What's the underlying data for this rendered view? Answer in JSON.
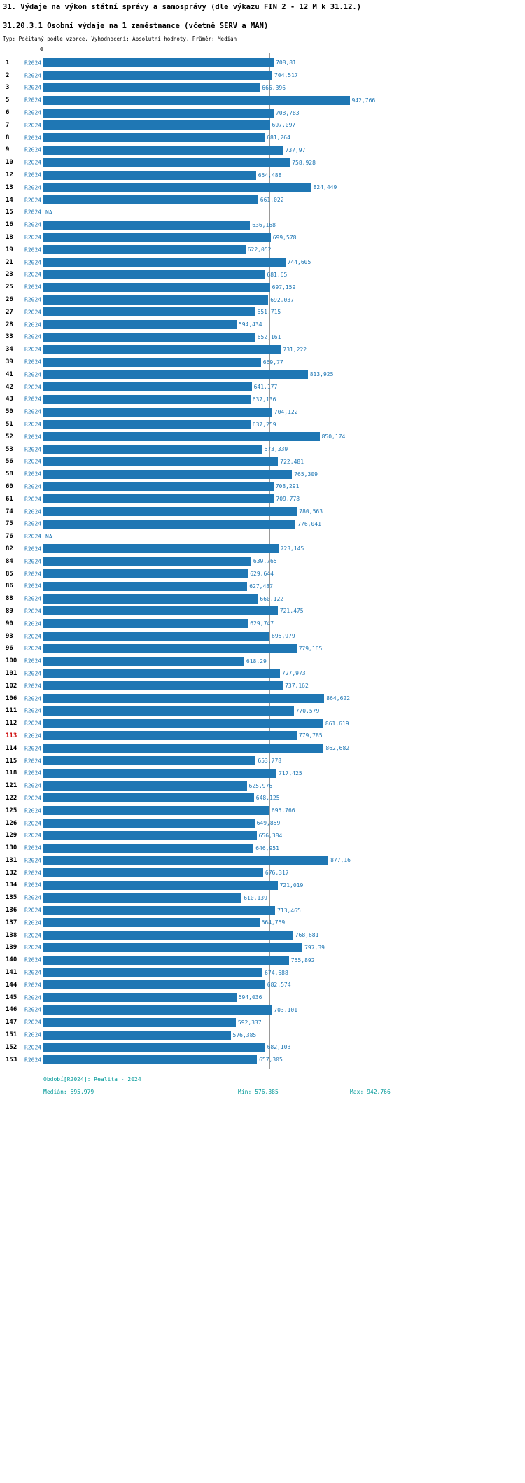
{
  "title": "31. Výdaje na výkon státní správy a samosprávy (dle výkazu FIN 2 - 12 M k 31.12.)",
  "subtitle": "31.20.3.1 Osobní výdaje na 1 zaměstnance (včetně SERV a MAN)",
  "meta_line": "Typ: Počítaný podle vzorce, Vyhodnocení: Absolutní hodnoty, Průměr: Medián",
  "axis": {
    "zero_label": "0"
  },
  "footer": {
    "period": "Období[R2024]: Realita - 2024",
    "median": "Medián: 695,979",
    "min": "Min: 576,385",
    "max": "Max: 942,766"
  },
  "colors": {
    "bar": "#1f77b4",
    "value_label": "#1f77b4",
    "series_link": "#1f77b4",
    "highlight_row": "#cc0000",
    "footer_text": "#009999",
    "median_line": "#999999"
  },
  "chart_data": {
    "type": "bar",
    "orientation": "horizontal",
    "title": "31.20.3.1 Osobní výdaje na 1 zaměstnance (včetně SERV a MAN)",
    "series_name": "R2024",
    "value_axis_start": 0,
    "median": 695.979,
    "min": 576.385,
    "max": 942.766,
    "legend_position": "none",
    "grid": false,
    "rows": [
      {
        "id": "1",
        "label": "708,81",
        "value": 708.81
      },
      {
        "id": "2",
        "label": "704,517",
        "value": 704.517
      },
      {
        "id": "3",
        "label": "666,396",
        "value": 666.396
      },
      {
        "id": "5",
        "label": "942,766",
        "value": 942.766
      },
      {
        "id": "6",
        "label": "708,783",
        "value": 708.783
      },
      {
        "id": "7",
        "label": "697,097",
        "value": 697.097
      },
      {
        "id": "8",
        "label": "681,264",
        "value": 681.264
      },
      {
        "id": "9",
        "label": "737,97",
        "value": 737.97
      },
      {
        "id": "10",
        "label": "758,928",
        "value": 758.928
      },
      {
        "id": "12",
        "label": "654,488",
        "value": 654.488
      },
      {
        "id": "13",
        "label": "824,449",
        "value": 824.449
      },
      {
        "id": "14",
        "label": "661,022",
        "value": 661.022
      },
      {
        "id": "15",
        "label": "NA",
        "value": null
      },
      {
        "id": "16",
        "label": "636,168",
        "value": 636.168
      },
      {
        "id": "18",
        "label": "699,578",
        "value": 699.578
      },
      {
        "id": "19",
        "label": "622,052",
        "value": 622.052
      },
      {
        "id": "21",
        "label": "744,605",
        "value": 744.605
      },
      {
        "id": "23",
        "label": "681,65",
        "value": 681.65
      },
      {
        "id": "25",
        "label": "697,159",
        "value": 697.159
      },
      {
        "id": "26",
        "label": "692,037",
        "value": 692.037
      },
      {
        "id": "27",
        "label": "651,715",
        "value": 651.715
      },
      {
        "id": "28",
        "label": "594,434",
        "value": 594.434
      },
      {
        "id": "33",
        "label": "652,161",
        "value": 652.161
      },
      {
        "id": "34",
        "label": "731,222",
        "value": 731.222
      },
      {
        "id": "39",
        "label": "669,77",
        "value": 669.77
      },
      {
        "id": "41",
        "label": "813,925",
        "value": 813.925
      },
      {
        "id": "42",
        "label": "641,177",
        "value": 641.177
      },
      {
        "id": "43",
        "label": "637,136",
        "value": 637.136
      },
      {
        "id": "50",
        "label": "704,122",
        "value": 704.122
      },
      {
        "id": "51",
        "label": "637,259",
        "value": 637.259
      },
      {
        "id": "52",
        "label": "850,174",
        "value": 850.174
      },
      {
        "id": "53",
        "label": "673,339",
        "value": 673.339
      },
      {
        "id": "56",
        "label": "722,481",
        "value": 722.481
      },
      {
        "id": "58",
        "label": "765,309",
        "value": 765.309
      },
      {
        "id": "60",
        "label": "708,291",
        "value": 708.291
      },
      {
        "id": "61",
        "label": "709,778",
        "value": 709.778
      },
      {
        "id": "74",
        "label": "780,563",
        "value": 780.563
      },
      {
        "id": "75",
        "label": "776,041",
        "value": 776.041
      },
      {
        "id": "76",
        "label": "NA",
        "value": null
      },
      {
        "id": "82",
        "label": "723,145",
        "value": 723.145
      },
      {
        "id": "84",
        "label": "639,765",
        "value": 639.765
      },
      {
        "id": "85",
        "label": "629,644",
        "value": 629.644
      },
      {
        "id": "86",
        "label": "627,487",
        "value": 627.487
      },
      {
        "id": "88",
        "label": "660,122",
        "value": 660.122
      },
      {
        "id": "89",
        "label": "721,475",
        "value": 721.475
      },
      {
        "id": "90",
        "label": "629,747",
        "value": 629.747
      },
      {
        "id": "93",
        "label": "695,979",
        "value": 695.979
      },
      {
        "id": "96",
        "label": "779,165",
        "value": 779.165
      },
      {
        "id": "100",
        "label": "618,29",
        "value": 618.29
      },
      {
        "id": "101",
        "label": "727,973",
        "value": 727.973
      },
      {
        "id": "102",
        "label": "737,162",
        "value": 737.162
      },
      {
        "id": "106",
        "label": "864,622",
        "value": 864.622
      },
      {
        "id": "111",
        "label": "770,579",
        "value": 770.579
      },
      {
        "id": "112",
        "label": "861,619",
        "value": 861.619
      },
      {
        "id": "113",
        "label": "779,785",
        "value": 779.785,
        "highlight": true
      },
      {
        "id": "114",
        "label": "862,682",
        "value": 862.682
      },
      {
        "id": "115",
        "label": "653,778",
        "value": 653.778
      },
      {
        "id": "118",
        "label": "717,425",
        "value": 717.425
      },
      {
        "id": "121",
        "label": "625,976",
        "value": 625.976
      },
      {
        "id": "122",
        "label": "648,125",
        "value": 648.125
      },
      {
        "id": "125",
        "label": "695,766",
        "value": 695.766
      },
      {
        "id": "126",
        "label": "649,859",
        "value": 649.859
      },
      {
        "id": "129",
        "label": "656,384",
        "value": 656.384
      },
      {
        "id": "130",
        "label": "646,951",
        "value": 646.951
      },
      {
        "id": "131",
        "label": "877,16",
        "value": 877.16
      },
      {
        "id": "132",
        "label": "676,317",
        "value": 676.317
      },
      {
        "id": "134",
        "label": "721,019",
        "value": 721.019
      },
      {
        "id": "135",
        "label": "610,139",
        "value": 610.139
      },
      {
        "id": "136",
        "label": "713,465",
        "value": 713.465
      },
      {
        "id": "137",
        "label": "664,759",
        "value": 664.759
      },
      {
        "id": "138",
        "label": "768,681",
        "value": 768.681
      },
      {
        "id": "139",
        "label": "797,39",
        "value": 797.39
      },
      {
        "id": "140",
        "label": "755,892",
        "value": 755.892
      },
      {
        "id": "141",
        "label": "674,688",
        "value": 674.688
      },
      {
        "id": "144",
        "label": "682,574",
        "value": 682.574
      },
      {
        "id": "145",
        "label": "594,036",
        "value": 594.036
      },
      {
        "id": "146",
        "label": "703,101",
        "value": 703.101
      },
      {
        "id": "147",
        "label": "592,337",
        "value": 592.337
      },
      {
        "id": "151",
        "label": "576,385",
        "value": 576.385
      },
      {
        "id": "152",
        "label": "682,103",
        "value": 682.103
      },
      {
        "id": "153",
        "label": "657,305",
        "value": 657.305
      }
    ]
  }
}
